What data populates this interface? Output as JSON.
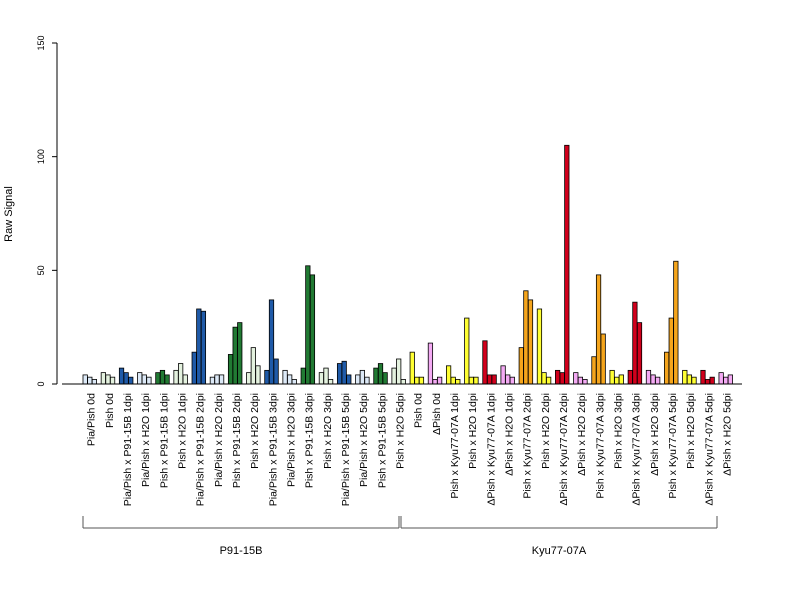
{
  "chart_data": {
    "type": "bar",
    "ylabel": "Raw Signal",
    "ylim": [
      0,
      150
    ],
    "yticks": [
      0,
      50,
      100,
      150
    ],
    "grid": false,
    "groups": [
      {
        "label": "P91-15B",
        "first_category": 0,
        "last_category": 17
      },
      {
        "label": "Kyu77-07A",
        "first_category": 18,
        "last_category": 35
      }
    ],
    "categories": [
      "Pia/Pish 0d",
      "Pish 0d",
      "Pia/Pish x P91-15B 1dpi",
      "Pia/Pish x H2O 1dpi",
      "Pish x P91-15B 1dpi",
      "Pish x H2O 1dpi",
      "Pia/Pish x P91-15B 2dpi",
      "Pia/Pish x H2O 2dpi",
      "Pish x P91-15B 2dpi",
      "Pish x H2O 2dpi",
      "Pia/Pish x P91-15B 3dpi",
      "Pia/Pish x H2O 3dpi",
      "Pish x P91-15B 3dpi",
      "Pish x H2O 3dpi",
      "Pia/Pish x P91-15B 5dpi",
      "Pia/Pish x H2O 5dpi",
      "Pish x P91-15B 5dpi",
      "Pish x H2O 5dpi",
      "Pish 0d",
      "ΔPish 0d",
      "Pish x Kyu77-07A 1dpi",
      "Pish x H2O 1dpi",
      "ΔPish x Kyu77-07A 1dpi",
      "ΔPish x H2O 1dpi",
      "Pish x Kyu77-07A 2dpi",
      "Pish x H2O 2dpi",
      "ΔPish x Kyu77-07A 2dpi",
      "ΔPish x H2O 2dpi",
      "Pish x Kyu77-07A 3dpi",
      "Pish x H2O 3dpi",
      "ΔPish x Kyu77-07A 3dpi",
      "ΔPish x H2O 3dpi",
      "Pish x Kyu77-07A 5dpi",
      "Pish x H2O 5dpi",
      "ΔPish x Kyu77-07A 5dpi",
      "ΔPish x H2O 5dpi"
    ],
    "colors": [
      "#dce9f7",
      "#e4f2df",
      "#1f5aa8",
      "#dce9f7",
      "#217a33",
      "#e4f2df",
      "#1f5aa8",
      "#dce9f7",
      "#217a33",
      "#e4f2df",
      "#1f5aa8",
      "#dce9f7",
      "#217a33",
      "#e4f2df",
      "#1f5aa8",
      "#dce9f7",
      "#217a33",
      "#e4f2df",
      "#ffff33",
      "#f4aaf4",
      "#ffff33",
      "#ffff33",
      "#d1001c",
      "#f4aaf4",
      "#f5a51c",
      "#ffff33",
      "#d1001c",
      "#f4aaf4",
      "#f5a51c",
      "#ffff33",
      "#d1001c",
      "#f4aaf4",
      "#f5a51c",
      "#ffff33",
      "#d1001c",
      "#f4aaf4"
    ],
    "values": [
      [
        4,
        3,
        2
      ],
      [
        5,
        4,
        3
      ],
      [
        7,
        5,
        3
      ],
      [
        5,
        4,
        3
      ],
      [
        5,
        6,
        4
      ],
      [
        6,
        9,
        4
      ],
      [
        14,
        33,
        32
      ],
      [
        3,
        4,
        4
      ],
      [
        13,
        25,
        27
      ],
      [
        5,
        16,
        8
      ],
      [
        6,
        37,
        11
      ],
      [
        6,
        4,
        2
      ],
      [
        7,
        52,
        48
      ],
      [
        5,
        7,
        2
      ],
      [
        9,
        10,
        4
      ],
      [
        4,
        6,
        3
      ],
      [
        7,
        9,
        5
      ],
      [
        7,
        11,
        2
      ],
      [
        14,
        3,
        3
      ],
      [
        18,
        2,
        3
      ],
      [
        8,
        3,
        2
      ],
      [
        29,
        3,
        3
      ],
      [
        19,
        4,
        4
      ],
      [
        8,
        4,
        3
      ],
      [
        16,
        41,
        37
      ],
      [
        33,
        5,
        3
      ],
      [
        6,
        5,
        105
      ],
      [
        5,
        3,
        2
      ],
      [
        12,
        48,
        22
      ],
      [
        6,
        3,
        4
      ],
      [
        6,
        36,
        27
      ],
      [
        6,
        4,
        3
      ],
      [
        14,
        29,
        54
      ],
      [
        6,
        4,
        3
      ],
      [
        6,
        2,
        3
      ],
      [
        5,
        3,
        4
      ]
    ]
  }
}
